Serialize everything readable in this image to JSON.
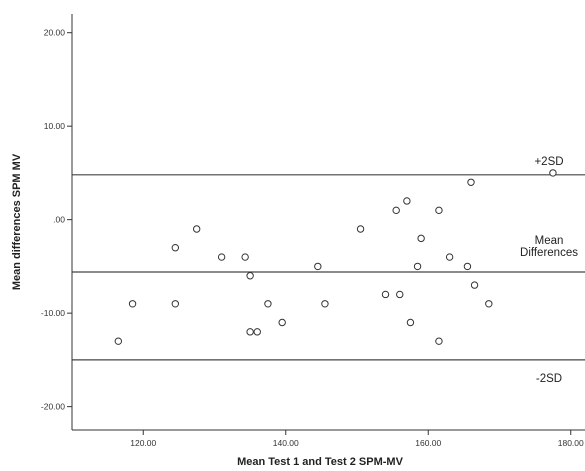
{
  "chart_data": {
    "type": "scatter",
    "title": "",
    "xlabel": "Mean Test 1 and Test 2 SPM-MV",
    "ylabel": "Mean differences SPM MV",
    "xlim": [
      110,
      182
    ],
    "ylim": [
      -22.5,
      22
    ],
    "x_ticks": [
      120,
      140,
      160,
      180
    ],
    "x_tick_labels": [
      "120.00",
      "140.00",
      "160.00",
      "180.00"
    ],
    "y_ticks": [
      20,
      10,
      0,
      -10,
      -20
    ],
    "y_tick_labels": [
      "20.00",
      "10.00",
      ".00",
      "-10.00",
      "-20.00"
    ],
    "grid": false,
    "legend": "none",
    "reference_lines": [
      {
        "name": "upper",
        "y": 4.8,
        "label_lines": [
          "+2SD"
        ]
      },
      {
        "name": "mean",
        "y": -5.6,
        "label_lines": [
          "Mean",
          "Differences"
        ]
      },
      {
        "name": "lower",
        "y": -15,
        "label_lines": [
          "-2SD"
        ]
      }
    ],
    "points": [
      {
        "x": 116.5,
        "y": -13
      },
      {
        "x": 118.5,
        "y": -9
      },
      {
        "x": 124.5,
        "y": -3
      },
      {
        "x": 124.5,
        "y": -9
      },
      {
        "x": 127.5,
        "y": -1
      },
      {
        "x": 131,
        "y": -4
      },
      {
        "x": 134.3,
        "y": -4
      },
      {
        "x": 135,
        "y": -6
      },
      {
        "x": 135,
        "y": -12
      },
      {
        "x": 136,
        "y": -12
      },
      {
        "x": 137.5,
        "y": -9
      },
      {
        "x": 139.5,
        "y": -11
      },
      {
        "x": 144.5,
        "y": -5
      },
      {
        "x": 145.5,
        "y": -9
      },
      {
        "x": 150.5,
        "y": -1
      },
      {
        "x": 154,
        "y": -8
      },
      {
        "x": 155.5,
        "y": 1
      },
      {
        "x": 156,
        "y": -8
      },
      {
        "x": 157,
        "y": 2
      },
      {
        "x": 157.5,
        "y": -11
      },
      {
        "x": 158.5,
        "y": -5
      },
      {
        "x": 159,
        "y": -2
      },
      {
        "x": 161.5,
        "y": 1
      },
      {
        "x": 161.5,
        "y": -13
      },
      {
        "x": 163,
        "y": -4
      },
      {
        "x": 165.5,
        "y": -5
      },
      {
        "x": 166,
        "y": 4
      },
      {
        "x": 166.5,
        "y": -7
      },
      {
        "x": 168.5,
        "y": -9
      },
      {
        "x": 177.5,
        "y": 5
      }
    ]
  }
}
